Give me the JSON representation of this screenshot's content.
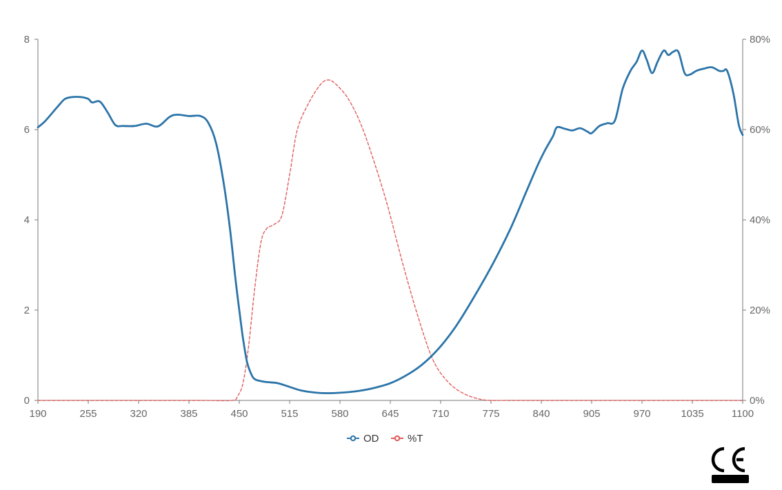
{
  "chart_data": {
    "type": "line",
    "xlabel": "",
    "ylabel": "",
    "xlim": [
      190,
      1100
    ],
    "ylim_left": [
      0,
      8
    ],
    "ylim_right": [
      0,
      80
    ],
    "x_ticks": [
      190,
      255,
      320,
      385,
      450,
      515,
      580,
      645,
      710,
      775,
      840,
      905,
      970,
      1035,
      1100
    ],
    "y_ticks_left": [
      0,
      2,
      4,
      6,
      8
    ],
    "y_ticks_right": [
      "0%",
      "20%",
      "40%",
      "60%",
      "80%"
    ],
    "y_ticks_right_values": [
      0,
      20,
      40,
      60,
      80
    ],
    "grid": false,
    "legend_position": "bottom-center",
    "series": [
      {
        "name": "OD",
        "axis": "left",
        "color": "#2b74a8",
        "style": "solid",
        "x": [
          190,
          200,
          215,
          225,
          235,
          245,
          255,
          260,
          270,
          280,
          290,
          300,
          315,
          330,
          345,
          360,
          370,
          385,
          400,
          410,
          420,
          430,
          438,
          445,
          450,
          455,
          460,
          465,
          470,
          480,
          490,
          500,
          515,
          530,
          550,
          565,
          580,
          600,
          620,
          645,
          670,
          690,
          710,
          730,
          750,
          775,
          800,
          820,
          835,
          845,
          855,
          860,
          870,
          880,
          890,
          900,
          905,
          915,
          925,
          935,
          945,
          955,
          963,
          970,
          976,
          983,
          990,
          998,
          1004,
          1010,
          1017,
          1025,
          1032,
          1040,
          1050,
          1060,
          1070,
          1075,
          1080,
          1088,
          1095,
          1100
        ],
        "values": [
          6.05,
          6.2,
          6.5,
          6.68,
          6.72,
          6.72,
          6.68,
          6.6,
          6.62,
          6.38,
          6.1,
          6.08,
          6.08,
          6.13,
          6.07,
          6.28,
          6.33,
          6.3,
          6.3,
          6.15,
          5.7,
          4.8,
          3.8,
          2.7,
          2.0,
          1.35,
          0.85,
          0.6,
          0.47,
          0.42,
          0.4,
          0.38,
          0.3,
          0.22,
          0.17,
          0.16,
          0.17,
          0.2,
          0.26,
          0.38,
          0.6,
          0.85,
          1.2,
          1.65,
          2.2,
          2.95,
          3.8,
          4.6,
          5.2,
          5.55,
          5.85,
          6.05,
          6.02,
          5.98,
          6.03,
          5.95,
          5.92,
          6.08,
          6.14,
          6.2,
          6.9,
          7.3,
          7.5,
          7.75,
          7.55,
          7.25,
          7.5,
          7.75,
          7.65,
          7.72,
          7.72,
          7.25,
          7.22,
          7.3,
          7.35,
          7.38,
          7.3,
          7.3,
          7.3,
          6.8,
          6.1,
          5.88
        ]
      },
      {
        "name": "%T",
        "axis": "right",
        "color": "#e05a5a",
        "style": "dashed",
        "x": [
          190,
          300,
          400,
          440,
          448,
          455,
          462,
          470,
          478,
          485,
          495,
          505,
          515,
          525,
          540,
          555,
          565,
          575,
          590,
          605,
          620,
          640,
          660,
          680,
          700,
          720,
          740,
          760,
          775,
          800,
          900,
          1000,
          1100
        ],
        "values": [
          0,
          0,
          0,
          0,
          1,
          4,
          12,
          25,
          35,
          38,
          39,
          41,
          50,
          60,
          66,
          70,
          71,
          70,
          67,
          62,
          55,
          44,
          31,
          19,
          9,
          4,
          1.5,
          0.3,
          0,
          0,
          0,
          0,
          0
        ]
      }
    ]
  }
}
